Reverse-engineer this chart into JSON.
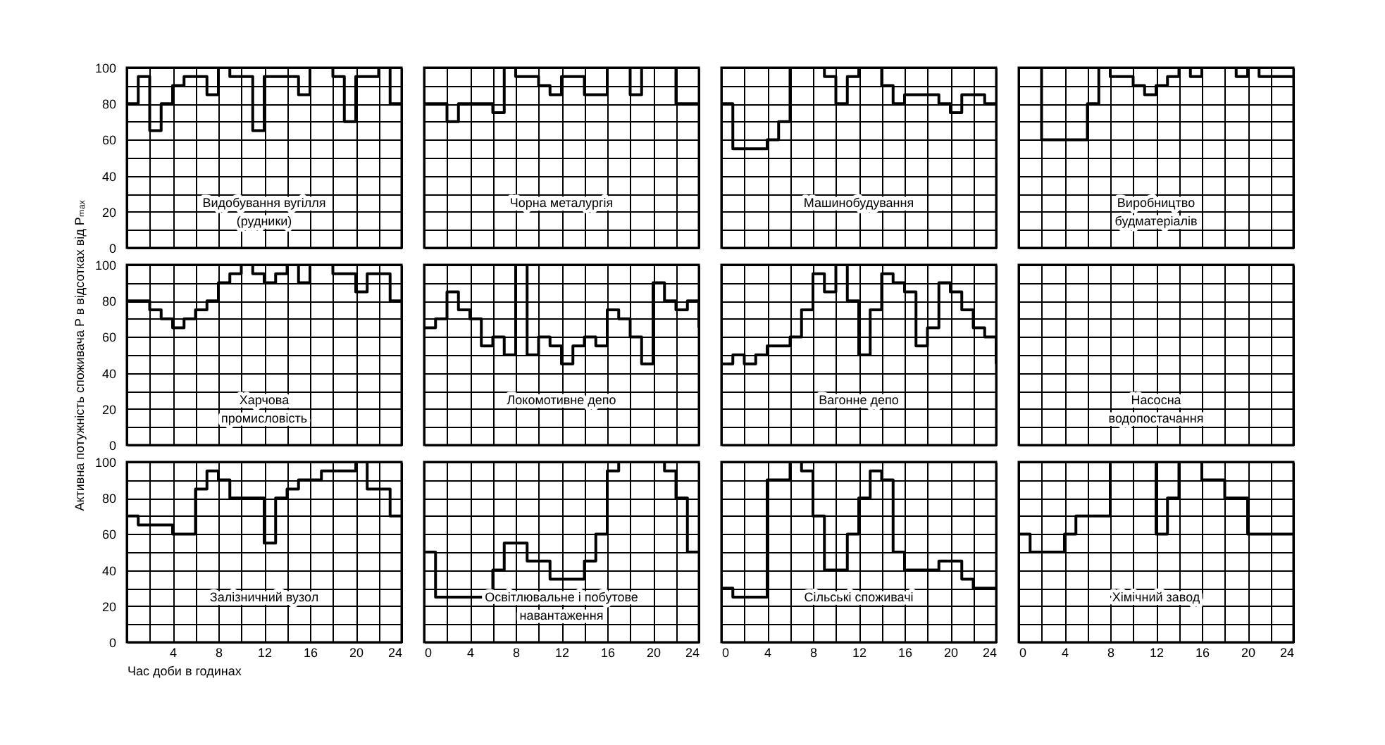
{
  "chart_data": [
    {
      "type": "step",
      "title": "Видобування вугілля\n(рудники)",
      "x": [
        0,
        1,
        2,
        3,
        4,
        5,
        6,
        7,
        8,
        9,
        10,
        11,
        12,
        13,
        14,
        15,
        16,
        17,
        18,
        19,
        20,
        21,
        22,
        23,
        24
      ],
      "values": [
        80,
        95,
        65,
        80,
        90,
        95,
        95,
        85,
        100,
        95,
        95,
        65,
        95,
        95,
        95,
        85,
        100,
        100,
        95,
        70,
        95,
        95,
        100,
        80,
        80
      ],
      "color": "#000000",
      "xlim": [
        0,
        24
      ],
      "ylim": [
        0,
        100
      ],
      "xticks": [
        0,
        {
          "value": 2,
          "label": null
        },
        4,
        {
          "value": 6,
          "label": null
        },
        8,
        {
          "value": 10,
          "label": null
        },
        12,
        {
          "value": 14,
          "label": null
        },
        16,
        {
          "value": 18,
          "label": null
        },
        20,
        {
          "value": 22,
          "label": null
        },
        24
      ],
      "yticks": [
        0,
        {
          "value": 10,
          "label": null
        },
        20,
        {
          "value": 30,
          "label": null
        },
        40,
        {
          "value": 50,
          "label": null
        },
        60,
        {
          "value": 70,
          "label": null
        },
        80,
        {
          "value": 90,
          "label": null
        },
        100
      ],
      "grid": true,
      "tick_labels": "y"
    },
    {
      "type": "step",
      "title": "Чорна металургія",
      "x": [
        0,
        1,
        2,
        3,
        4,
        5,
        6,
        7,
        8,
        9,
        10,
        11,
        12,
        13,
        14,
        15,
        16,
        17,
        18,
        19,
        20,
        21,
        22,
        23,
        24
      ],
      "values": [
        80,
        80,
        70,
        80,
        80,
        80,
        75,
        100,
        95,
        95,
        90,
        85,
        95,
        95,
        85,
        85,
        100,
        100,
        85,
        100,
        100,
        100,
        80,
        80,
        80
      ],
      "color": "#000000",
      "xlim": [
        0,
        24
      ],
      "ylim": [
        0,
        100
      ],
      "xticks": [
        0,
        {
          "value": 2,
          "label": null
        },
        4,
        {
          "value": 6,
          "label": null
        },
        8,
        {
          "value": 10,
          "label": null
        },
        12,
        {
          "value": 14,
          "label": null
        },
        16,
        {
          "value": 18,
          "label": null
        },
        20,
        {
          "value": 22,
          "label": null
        },
        24
      ],
      "yticks": [
        0,
        {
          "value": 10,
          "label": null
        },
        20,
        {
          "value": 30,
          "label": null
        },
        40,
        {
          "value": 50,
          "label": null
        },
        60,
        {
          "value": 70,
          "label": null
        },
        80,
        {
          "value": 90,
          "label": null
        },
        100
      ],
      "grid": true,
      "tick_labels": false
    },
    {
      "type": "step",
      "title": "Машинобудування",
      "x": [
        0,
        1,
        2,
        3,
        4,
        5,
        6,
        7,
        8,
        9,
        10,
        11,
        12,
        13,
        14,
        15,
        16,
        17,
        18,
        19,
        20,
        21,
        22,
        23,
        24
      ],
      "values": [
        80,
        55,
        55,
        55,
        60,
        70,
        100,
        100,
        100,
        95,
        80,
        95,
        100,
        100,
        90,
        80,
        85,
        85,
        85,
        80,
        75,
        85,
        85,
        80,
        80
      ],
      "color": "#000000",
      "xlim": [
        0,
        24
      ],
      "ylim": [
        0,
        100
      ],
      "xticks": [
        0,
        {
          "value": 2,
          "label": null
        },
        4,
        {
          "value": 6,
          "label": null
        },
        8,
        {
          "value": 10,
          "label": null
        },
        12,
        {
          "value": 14,
          "label": null
        },
        16,
        {
          "value": 18,
          "label": null
        },
        20,
        {
          "value": 22,
          "label": null
        },
        24
      ],
      "yticks": [
        0,
        {
          "value": 10,
          "label": null
        },
        20,
        {
          "value": 30,
          "label": null
        },
        40,
        {
          "value": 50,
          "label": null
        },
        60,
        {
          "value": 70,
          "label": null
        },
        80,
        {
          "value": 90,
          "label": null
        },
        100
      ],
      "grid": true,
      "tick_labels": false
    },
    {
      "type": "step",
      "title": "Виробництво\nбудматеріалів",
      "x": [
        0,
        1,
        2,
        3,
        4,
        5,
        6,
        7,
        8,
        9,
        10,
        11,
        12,
        13,
        14,
        15,
        16,
        17,
        18,
        19,
        20,
        21,
        22,
        23,
        24
      ],
      "values": [
        100,
        100,
        60,
        60,
        60,
        60,
        80,
        100,
        95,
        95,
        90,
        85,
        90,
        95,
        100,
        95,
        100,
        100,
        100,
        95,
        100,
        95,
        95,
        95,
        95
      ],
      "color": "#000000",
      "xlim": [
        0,
        24
      ],
      "ylim": [
        0,
        100
      ],
      "xticks": [
        0,
        {
          "value": 2,
          "label": null
        },
        4,
        {
          "value": 6,
          "label": null
        },
        8,
        {
          "value": 10,
          "label": null
        },
        12,
        {
          "value": 14,
          "label": null
        },
        16,
        {
          "value": 18,
          "label": null
        },
        20,
        {
          "value": 22,
          "label": null
        },
        24
      ],
      "yticks": [
        0,
        {
          "value": 10,
          "label": null
        },
        20,
        {
          "value": 30,
          "label": null
        },
        40,
        {
          "value": 50,
          "label": null
        },
        60,
        {
          "value": 70,
          "label": null
        },
        80,
        {
          "value": 90,
          "label": null
        },
        100
      ],
      "grid": true,
      "tick_labels": false
    },
    {
      "type": "step",
      "title": "Харчова\nпромисловість",
      "ylabel": "Активна потужність споживача P в відсотках від Pₘₐₓ",
      "x": [
        0,
        1,
        2,
        3,
        4,
        5,
        6,
        7,
        8,
        9,
        10,
        11,
        12,
        13,
        14,
        15,
        16,
        17,
        18,
        19,
        20,
        21,
        22,
        23,
        24
      ],
      "values": [
        80,
        80,
        75,
        70,
        65,
        70,
        75,
        80,
        90,
        95,
        100,
        95,
        90,
        95,
        100,
        90,
        100,
        100,
        95,
        95,
        85,
        95,
        95,
        80,
        80
      ],
      "color": "#000000",
      "xlim": [
        0,
        24
      ],
      "ylim": [
        0,
        100
      ],
      "xticks": [
        0,
        {
          "value": 2,
          "label": null
        },
        4,
        {
          "value": 6,
          "label": null
        },
        8,
        {
          "value": 10,
          "label": null
        },
        12,
        {
          "value": 14,
          "label": null
        },
        16,
        {
          "value": 18,
          "label": null
        },
        20,
        {
          "value": 22,
          "label": null
        },
        24
      ],
      "yticks": [
        0,
        {
          "value": 10,
          "label": null
        },
        20,
        {
          "value": 30,
          "label": null
        },
        40,
        {
          "value": 50,
          "label": null
        },
        60,
        {
          "value": 70,
          "label": null
        },
        80,
        {
          "value": 90,
          "label": null
        },
        100
      ],
      "grid": true,
      "tick_labels": "y"
    },
    {
      "type": "step",
      "title": "Локомотивне депо",
      "x": [
        0,
        1,
        2,
        3,
        4,
        5,
        6,
        7,
        8,
        9,
        10,
        11,
        12,
        13,
        14,
        15,
        16,
        17,
        18,
        19,
        20,
        21,
        22,
        23,
        24
      ],
      "values": [
        65,
        70,
        85,
        75,
        70,
        55,
        60,
        50,
        100,
        50,
        60,
        55,
        45,
        55,
        60,
        55,
        75,
        70,
        60,
        45,
        90,
        80,
        75,
        80,
        65
      ],
      "color": "#000000",
      "xlim": [
        0,
        24
      ],
      "ylim": [
        0,
        100
      ],
      "xticks": [
        0,
        {
          "value": 2,
          "label": null
        },
        4,
        {
          "value": 6,
          "label": null
        },
        8,
        {
          "value": 10,
          "label": null
        },
        12,
        {
          "value": 14,
          "label": null
        },
        16,
        {
          "value": 18,
          "label": null
        },
        20,
        {
          "value": 22,
          "label": null
        },
        24
      ],
      "yticks": [
        0,
        {
          "value": 10,
          "label": null
        },
        20,
        {
          "value": 30,
          "label": null
        },
        40,
        {
          "value": 50,
          "label": null
        },
        60,
        {
          "value": 70,
          "label": null
        },
        80,
        {
          "value": 90,
          "label": null
        },
        100
      ],
      "grid": true,
      "tick_labels": false
    },
    {
      "type": "step",
      "title": "Вагонне депо",
      "x": [
        0,
        1,
        2,
        3,
        4,
        5,
        6,
        7,
        8,
        9,
        10,
        11,
        12,
        13,
        14,
        15,
        16,
        17,
        18,
        19,
        20,
        21,
        22,
        23,
        24
      ],
      "values": [
        45,
        50,
        45,
        50,
        55,
        55,
        60,
        75,
        95,
        85,
        100,
        80,
        50,
        75,
        95,
        90,
        85,
        55,
        65,
        90,
        85,
        75,
        65,
        60,
        45
      ],
      "color": "#000000",
      "xlim": [
        0,
        24
      ],
      "ylim": [
        0,
        100
      ],
      "xticks": [
        0,
        {
          "value": 2,
          "label": null
        },
        4,
        {
          "value": 6,
          "label": null
        },
        8,
        {
          "value": 10,
          "label": null
        },
        12,
        {
          "value": 14,
          "label": null
        },
        16,
        {
          "value": 18,
          "label": null
        },
        20,
        {
          "value": 22,
          "label": null
        },
        24
      ],
      "yticks": [
        0,
        {
          "value": 10,
          "label": null
        },
        20,
        {
          "value": 30,
          "label": null
        },
        40,
        {
          "value": 50,
          "label": null
        },
        60,
        {
          "value": 70,
          "label": null
        },
        80,
        {
          "value": 90,
          "label": null
        },
        100
      ],
      "grid": true,
      "tick_labels": false
    },
    {
      "type": "step",
      "title": "Насосна\nводопостачання",
      "color": "#000000",
      "xlim": [
        0,
        24
      ],
      "ylim": [
        0,
        100
      ],
      "xticks": [
        0,
        {
          "value": 2,
          "label": null
        },
        4,
        {
          "value": 6,
          "label": null
        },
        8,
        {
          "value": 10,
          "label": null
        },
        12,
        {
          "value": 14,
          "label": null
        },
        16,
        {
          "value": 18,
          "label": null
        },
        20,
        {
          "value": 22,
          "label": null
        },
        24
      ],
      "yticks": [
        0,
        {
          "value": 10,
          "label": null
        },
        20,
        {
          "value": 30,
          "label": null
        },
        40,
        {
          "value": 50,
          "label": null
        },
        60,
        {
          "value": 70,
          "label": null
        },
        80,
        {
          "value": 90,
          "label": null
        },
        100
      ],
      "grid": true,
      "tick_labels": false
    },
    {
      "type": "step",
      "title": "Залізничний вузол",
      "xlabel": "Час доби в годинах",
      "x": [
        0,
        1,
        2,
        3,
        4,
        5,
        6,
        7,
        8,
        9,
        10,
        11,
        12,
        13,
        14,
        15,
        16,
        17,
        18,
        19,
        20,
        21,
        22,
        23,
        24
      ],
      "values": [
        70,
        65,
        65,
        65,
        60,
        60,
        85,
        95,
        90,
        80,
        80,
        80,
        55,
        80,
        85,
        90,
        90,
        95,
        95,
        95,
        100,
        85,
        85,
        70,
        70
      ],
      "color": "#000000",
      "xlim": [
        0,
        24
      ],
      "ylim": [
        0,
        100
      ],
      "xticks": [
        {
          "value": 0,
          "label": null
        },
        {
          "value": 2,
          "label": null
        },
        4,
        {
          "value": 6,
          "label": null
        },
        8,
        {
          "value": 10,
          "label": null
        },
        12,
        {
          "value": 14,
          "label": null
        },
        16,
        {
          "value": 18,
          "label": null
        },
        20,
        {
          "value": 22,
          "label": null
        },
        24
      ],
      "yticks": [
        0,
        {
          "value": 10,
          "label": null
        },
        20,
        {
          "value": 30,
          "label": null
        },
        40,
        {
          "value": 50,
          "label": null
        },
        60,
        {
          "value": 70,
          "label": null
        },
        80,
        {
          "value": 90,
          "label": null
        },
        100
      ],
      "grid": true
    },
    {
      "type": "step",
      "title": "Освітлювальне і побутове\nнавантаження",
      "x": [
        0,
        1,
        2,
        3,
        4,
        5,
        6,
        7,
        8,
        9,
        10,
        11,
        12,
        13,
        14,
        15,
        16,
        17,
        18,
        19,
        20,
        21,
        22,
        23,
        24
      ],
      "values": [
        50,
        25,
        25,
        25,
        25,
        25,
        40,
        55,
        55,
        45,
        45,
        35,
        35,
        35,
        45,
        60,
        95,
        100,
        100,
        100,
        100,
        95,
        80,
        50,
        50
      ],
      "color": "#000000",
      "xlim": [
        0,
        24
      ],
      "ylim": [
        0,
        100
      ],
      "xticks": [
        0,
        {
          "value": 2,
          "label": null
        },
        4,
        {
          "value": 6,
          "label": null
        },
        8,
        {
          "value": 10,
          "label": null
        },
        12,
        {
          "value": 14,
          "label": null
        },
        16,
        {
          "value": 18,
          "label": null
        },
        20,
        {
          "value": 22,
          "label": null
        },
        24
      ],
      "yticks": [
        0,
        {
          "value": 10,
          "label": null
        },
        20,
        {
          "value": 30,
          "label": null
        },
        40,
        {
          "value": 50,
          "label": null
        },
        60,
        {
          "value": 70,
          "label": null
        },
        80,
        {
          "value": 90,
          "label": null
        },
        100
      ],
      "grid": true,
      "tick_labels": "x"
    },
    {
      "type": "step",
      "title": "Сільські споживачі",
      "x": [
        0,
        1,
        2,
        3,
        4,
        5,
        6,
        7,
        8,
        9,
        10,
        11,
        12,
        13,
        14,
        15,
        16,
        17,
        18,
        19,
        20,
        21,
        22,
        23,
        24
      ],
      "values": [
        30,
        25,
        25,
        25,
        90,
        90,
        100,
        95,
        70,
        40,
        40,
        60,
        80,
        95,
        90,
        50,
        40,
        40,
        40,
        45,
        45,
        35,
        30,
        30,
        30
      ],
      "color": "#000000",
      "xlim": [
        0,
        24
      ],
      "ylim": [
        0,
        100
      ],
      "xticks": [
        0,
        {
          "value": 2,
          "label": null
        },
        4,
        {
          "value": 6,
          "label": null
        },
        8,
        {
          "value": 10,
          "label": null
        },
        12,
        {
          "value": 14,
          "label": null
        },
        16,
        {
          "value": 18,
          "label": null
        },
        20,
        {
          "value": 22,
          "label": null
        },
        24
      ],
      "yticks": [
        0,
        {
          "value": 10,
          "label": null
        },
        20,
        {
          "value": 30,
          "label": null
        },
        40,
        {
          "value": 50,
          "label": null
        },
        60,
        {
          "value": 70,
          "label": null
        },
        80,
        {
          "value": 90,
          "label": null
        },
        100
      ],
      "grid": true,
      "tick_labels": "x"
    },
    {
      "type": "step",
      "title": "Хімічний завод",
      "x": [
        0,
        1,
        2,
        3,
        4,
        5,
        6,
        7,
        8,
        9,
        10,
        11,
        12,
        13,
        14,
        15,
        16,
        17,
        18,
        19,
        20,
        21,
        22,
        23,
        24
      ],
      "values": [
        60,
        50,
        50,
        50,
        60,
        70,
        70,
        70,
        100,
        100,
        100,
        100,
        60,
        80,
        100,
        100,
        90,
        90,
        80,
        80,
        60,
        60,
        60,
        60,
        60
      ],
      "color": "#000000",
      "xlim": [
        0,
        24
      ],
      "ylim": [
        0,
        100
      ],
      "xticks": [
        0,
        {
          "value": 2,
          "label": null
        },
        4,
        {
          "value": 6,
          "label": null
        },
        8,
        {
          "value": 10,
          "label": null
        },
        12,
        {
          "value": 14,
          "label": null
        },
        16,
        {
          "value": 18,
          "label": null
        },
        20,
        {
          "value": 22,
          "label": null
        },
        24
      ],
      "yticks": [
        0,
        {
          "value": 10,
          "label": null
        },
        20,
        {
          "value": 30,
          "label": null
        },
        40,
        {
          "value": 50,
          "label": null
        },
        60,
        {
          "value": 70,
          "label": null
        },
        80,
        {
          "value": 90,
          "label": null
        },
        100
      ],
      "grid": true,
      "tick_labels": "x"
    }
  ]
}
